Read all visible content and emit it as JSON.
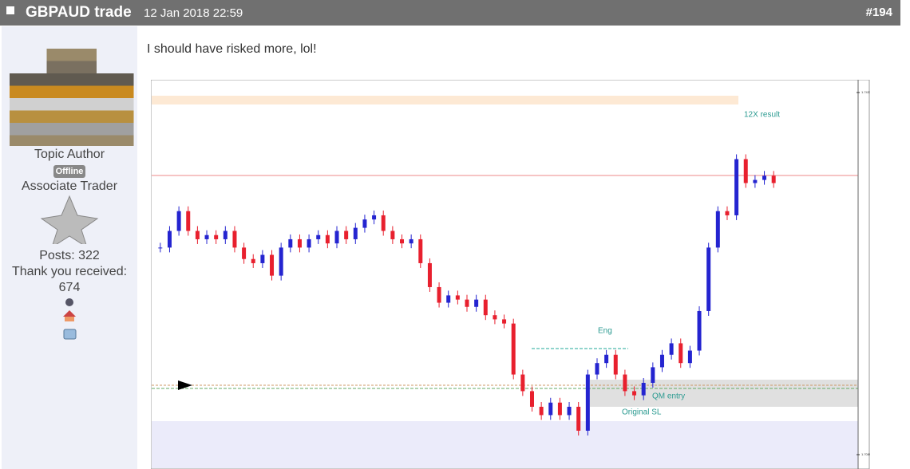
{
  "post": {
    "title": "GBPAUD trade",
    "date": "12 Jan 2018 22:59",
    "number": "#194",
    "text": "I should have risked more, lol!"
  },
  "author": {
    "role": "Topic Author",
    "status": "Offline",
    "rank": "Associate Trader",
    "posts": "Posts: 322",
    "thanks_label": "Thank you received:",
    "thanks": 674
  },
  "chart_data": {
    "type": "candlestick",
    "up_color": "#2424d0",
    "down_color": "#e8202e",
    "values": [
      1.7288,
      1.7304,
      1.7323,
      1.7304,
      1.7296,
      1.73,
      1.7296,
      1.7304,
      1.7288,
      1.7277,
      1.7273,
      1.7281,
      1.7261,
      1.7288,
      1.7296,
      1.7288,
      1.7296,
      1.73,
      1.7292,
      1.7304,
      1.7296,
      1.7307,
      1.7315,
      1.7319,
      1.7304,
      1.7296,
      1.7292,
      1.7296,
      1.7273,
      1.725,
      1.7235,
      1.7242,
      1.7238,
      1.7231,
      1.7238,
      1.7223,
      1.7219,
      1.7215,
      1.7166,
      1.715,
      1.7135,
      1.7127,
      1.7139,
      1.7127,
      1.7135,
      1.7112,
      1.7166,
      1.7177,
      1.7185,
      1.7166,
      1.715,
      1.7146,
      1.7158,
      1.7173,
      1.7185,
      1.7196,
      1.7177,
      1.7189,
      1.7227,
      1.7288,
      1.7323,
      1.7319,
      1.7373,
      1.735,
      1.7353,
      1.7357,
      1.735
    ],
    "ylim": [
      1.7089,
      1.7437
    ],
    "yticks": [
      1.7437,
      1.7089
    ],
    "annotations": [
      "12X result",
      "Eng",
      "QM entry",
      "Original SL"
    ]
  }
}
